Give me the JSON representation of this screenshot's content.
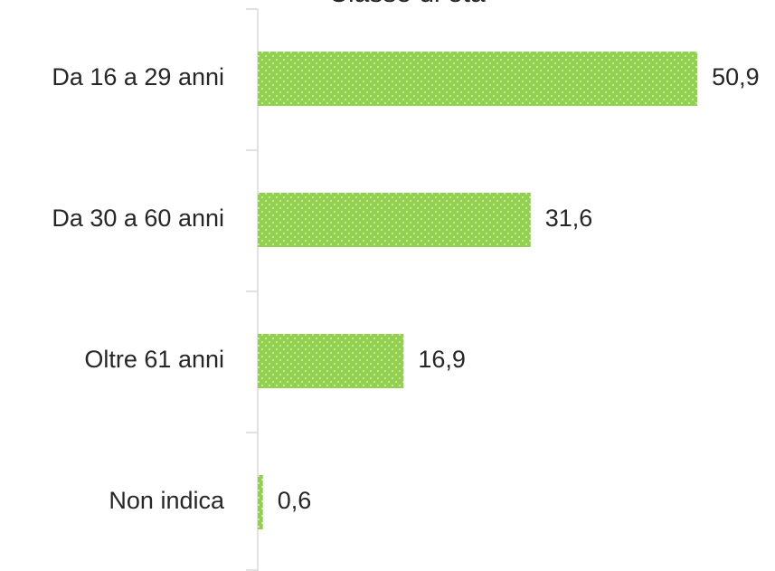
{
  "chart_data": {
    "type": "hbar",
    "title": "Classe di età",
    "categories": [
      "Da 16 a 29 anni",
      "Da 30 a 60 anni",
      "Oltre 61 anni",
      "Non indica"
    ],
    "values": [
      50.9,
      31.6,
      16.9,
      0.6
    ],
    "value_labels": [
      "50,9",
      "31,6",
      "16,9",
      "0,6"
    ],
    "color": "#92d050",
    "xlim": [
      0,
      60
    ]
  }
}
